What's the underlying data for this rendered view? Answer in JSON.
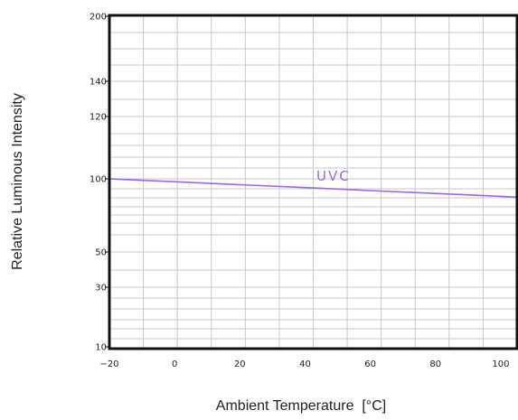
{
  "chart_data": {
    "type": "line",
    "title": "",
    "xlabel": "Ambient Temperature  [°C]",
    "ylabel": "Relative Luminous Intensity",
    "xlim": [
      -20,
      105
    ],
    "y_tick_labels": [
      "200",
      "140",
      "120",
      "100",
      "50",
      "30",
      "10"
    ],
    "x_ticks": [
      -20,
      0,
      20,
      40,
      60,
      80,
      100
    ],
    "x_tick_labels": [
      "−20",
      "0",
      "20",
      "40",
      "60",
      "80",
      "100"
    ],
    "grid": true,
    "series": [
      {
        "name": "UVC",
        "x": [
          -20,
          0,
          20,
          40,
          60,
          80,
          100,
          105
        ],
        "y": [
          100,
          98,
          96,
          94,
          92,
          90,
          88,
          87.5
        ],
        "color": "#9966ee"
      }
    ]
  }
}
